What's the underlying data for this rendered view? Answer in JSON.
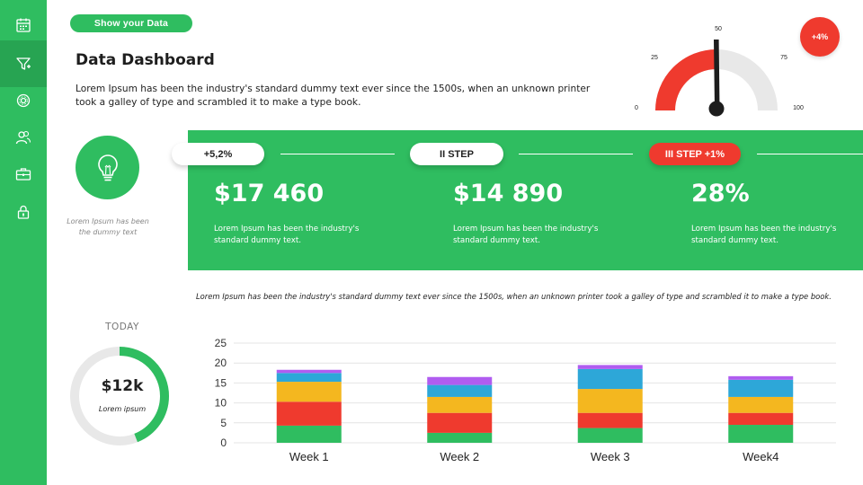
{
  "sidebar": {
    "items": [
      {
        "icon": "calendar-icon"
      },
      {
        "icon": "funnel-icon",
        "active": true
      },
      {
        "icon": "settings-icon"
      },
      {
        "icon": "users-icon"
      },
      {
        "icon": "briefcase-icon"
      },
      {
        "icon": "lock-icon"
      }
    ]
  },
  "header": {
    "pill_label": "Show your Data",
    "title": "Data Dashboard",
    "intro": "Lorem Ipsum has been the industry's standard dummy text ever since the 1500s, when an unknown printer took a galley of type and scrambled it to make a type book."
  },
  "gauge": {
    "value": 50,
    "min": 0,
    "max": 100,
    "ticks": [
      "0",
      "25",
      "50",
      "75",
      "100"
    ],
    "badge": "+4%"
  },
  "idea": {
    "icon": "lightbulb-icon",
    "caption": "Lorem Ipsum has been the dummy text"
  },
  "steps": [
    {
      "label": "+5,2%",
      "value": "$17 460",
      "desc": "Lorem Ipsum has been the industry's standard dummy text."
    },
    {
      "label": "II STEP",
      "value": "$14 890",
      "desc": "Lorem Ipsum has been the industry's standard dummy text."
    },
    {
      "label": "III STEP +1%",
      "value": "28%",
      "desc": "Lorem Ipsum has been the industry's standard dummy text."
    }
  ],
  "mid_note": "Lorem Ipsum has been the industry's standard dummy text ever since the 1500s, when an unknown printer took a galley of type and scrambled it to make a type book.",
  "today": {
    "label": "TODAY",
    "value": "$12k",
    "sub": "Lorem ipsum",
    "progress": 0.44
  },
  "colors": {
    "green": "#2fbd60",
    "red": "#ef3a2e",
    "yellow": "#f4b71f",
    "blue": "#2da7d8",
    "purple": "#b05cf0",
    "gray": "#e8e8e8"
  },
  "chart_data": {
    "type": "bar",
    "stacked": true,
    "categories": [
      "Week 1",
      "Week 2",
      "Week 3",
      "Week4"
    ],
    "yticks": [
      "0",
      "5",
      "10",
      "15",
      "20",
      "25"
    ],
    "ylim": [
      0,
      25
    ],
    "grid": true,
    "series": [
      {
        "color": "#2fbd60",
        "values": [
          4.3,
          2.5,
          3.7,
          4.5
        ]
      },
      {
        "color": "#ef3a2e",
        "values": [
          6,
          5,
          3.8,
          3
        ]
      },
      {
        "color": "#f4b71f",
        "values": [
          5,
          4,
          6,
          4
        ]
      },
      {
        "color": "#2da7d8",
        "values": [
          2.2,
          3,
          5,
          4.3
        ]
      },
      {
        "color": "#b05cf0",
        "values": [
          0.8,
          2,
          1,
          0.9
        ]
      }
    ]
  }
}
